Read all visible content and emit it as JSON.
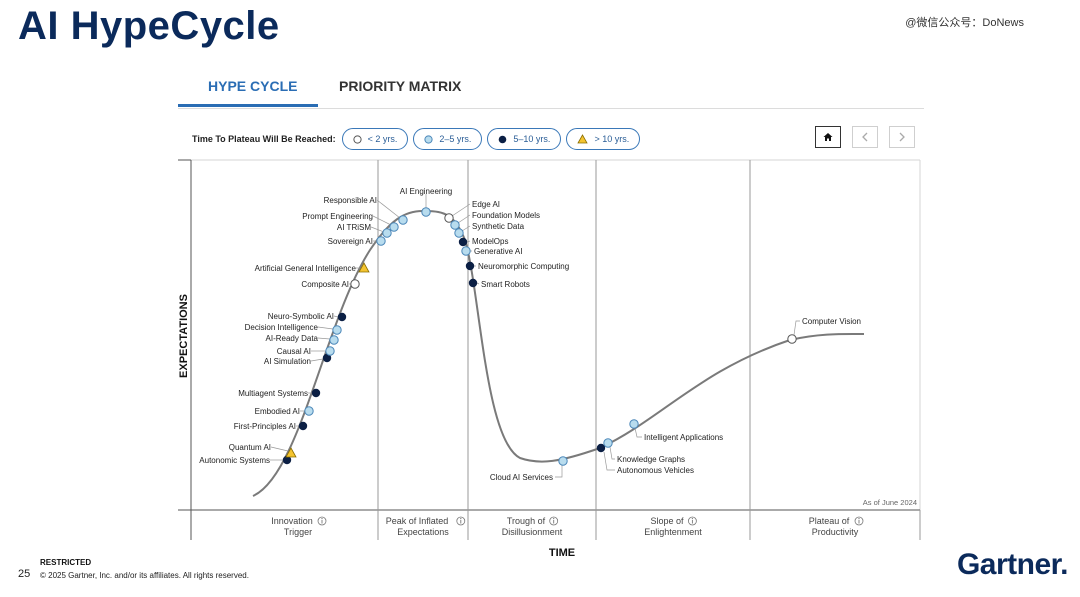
{
  "header": {
    "title": "AI HypeCycle",
    "watermark": "@微信公众号：DoNews"
  },
  "tabs": [
    {
      "label": "HYPE CYCLE",
      "active": true
    },
    {
      "label": "PRIORITY MATRIX",
      "active": false
    }
  ],
  "legend": {
    "label": "Time To Plateau Will Be Reached:",
    "items": [
      {
        "label": "< 2 yrs.",
        "marker": "open-circle"
      },
      {
        "label": "2–5 yrs.",
        "marker": "light-blue-circle"
      },
      {
        "label": "5–10 yrs.",
        "marker": "dark-navy-circle"
      },
      {
        "label": "> 10 yrs.",
        "marker": "yellow-triangle"
      }
    ]
  },
  "nav": {
    "home_icon": "home-icon",
    "prev_icon": "chevron-left-icon",
    "next_icon": "chevron-right-icon"
  },
  "colors": {
    "brand": "#0b2a5b",
    "accent": "#2a6db4",
    "light_marker": "#b8dcee",
    "dark_marker": "#0b1f44",
    "triangle": "#f4c430",
    "curve": "#7a7a7a"
  },
  "chart_data": {
    "type": "line",
    "ylabel": "EXPECTATIONS",
    "xlabel": "TIME",
    "as_of": "As of June 2024",
    "phases": [
      {
        "line1": "Innovation",
        "line2": "Trigger"
      },
      {
        "line1": "Peak of Inflated",
        "line2": "Expectations"
      },
      {
        "line1": "Trough of",
        "line2": "Disillusionment"
      },
      {
        "line1": "Slope of",
        "line2": "Enlightenment"
      },
      {
        "line1": "Plateau of",
        "line2": "Productivity"
      }
    ],
    "points": [
      {
        "name": "Autonomic Systems",
        "plateau": "5-10"
      },
      {
        "name": "Quantum AI",
        "plateau": ">10"
      },
      {
        "name": "First-Principles AI",
        "plateau": "5-10"
      },
      {
        "name": "Embodied AI",
        "plateau": "2-5"
      },
      {
        "name": "Multiagent Systems",
        "plateau": "5-10"
      },
      {
        "name": "AI Simulation",
        "plateau": "5-10"
      },
      {
        "name": "Causal AI",
        "plateau": "2-5"
      },
      {
        "name": "AI-Ready Data",
        "plateau": "2-5"
      },
      {
        "name": "Decision Intelligence",
        "plateau": "2-5"
      },
      {
        "name": "Neuro-Symbolic AI",
        "plateau": "5-10"
      },
      {
        "name": "Composite AI",
        "plateau": "<2"
      },
      {
        "name": "Artificial General Intelligence",
        "plateau": ">10"
      },
      {
        "name": "Sovereign AI",
        "plateau": "2-5"
      },
      {
        "name": "AI TRiSM",
        "plateau": "2-5"
      },
      {
        "name": "Prompt Engineering",
        "plateau": "2-5"
      },
      {
        "name": "Responsible AI",
        "plateau": "2-5"
      },
      {
        "name": "AI Engineering",
        "plateau": "2-5"
      },
      {
        "name": "Edge AI",
        "plateau": "<2"
      },
      {
        "name": "Foundation Models",
        "plateau": "2-5"
      },
      {
        "name": "Synthetic Data",
        "plateau": "2-5"
      },
      {
        "name": "ModelOps",
        "plateau": "5-10"
      },
      {
        "name": "Generative AI",
        "plateau": "2-5"
      },
      {
        "name": "Neuromorphic Computing",
        "plateau": "5-10"
      },
      {
        "name": "Smart Robots",
        "plateau": "5-10"
      },
      {
        "name": "Cloud AI Services",
        "plateau": "2-5"
      },
      {
        "name": "Autonomous Vehicles",
        "plateau": "5-10"
      },
      {
        "name": "Knowledge Graphs",
        "plateau": "2-5"
      },
      {
        "name": "Intelligent Applications",
        "plateau": "2-5"
      },
      {
        "name": "Computer Vision",
        "plateau": "<2"
      }
    ]
  },
  "footer": {
    "restricted": "RESTRICTED",
    "copyright": "© 2025 Gartner, Inc. and/or its affiliates. All rights reserved.",
    "page": "25",
    "logo": "Gartner."
  }
}
